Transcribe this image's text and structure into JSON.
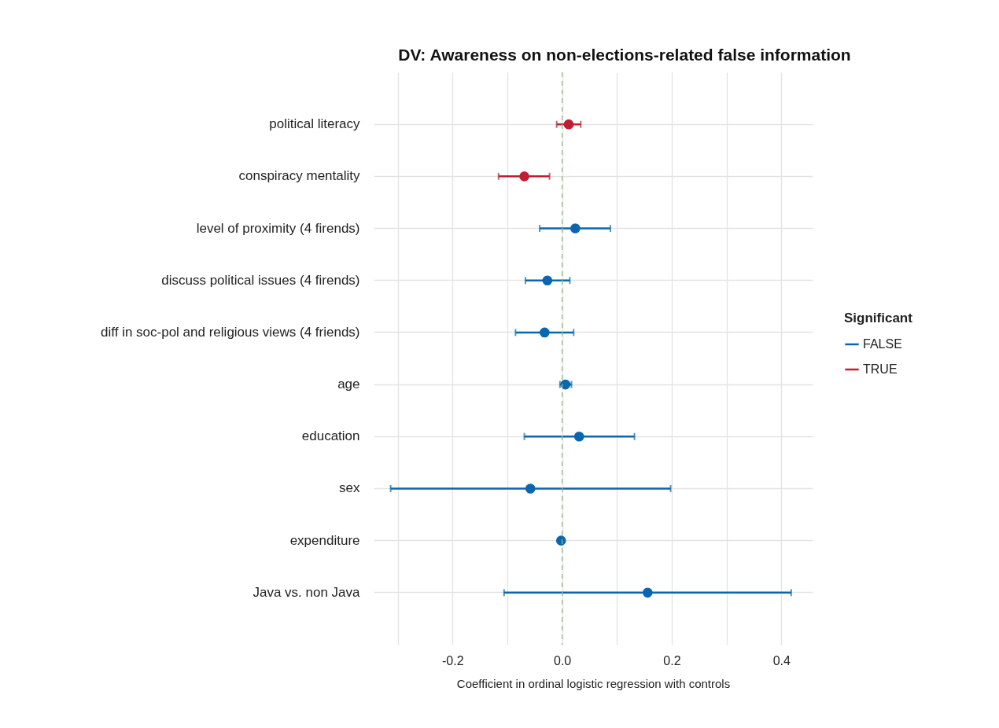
{
  "chart_data": {
    "type": "scatter",
    "orientation": "horizontal",
    "title": "DV: Awareness on non-elections-related false information",
    "xlabel": "Coefficient in ordinal logistic regression with controls",
    "categories": [
      "political literacy",
      "conspiracy mentality",
      "level of proximity (4 firends)",
      "discuss political issues (4 firends)",
      "diff in soc-pol and religious views (4 friends)",
      "age",
      "education",
      "sex",
      "expenditure",
      "Java vs. non Java"
    ],
    "series": [
      {
        "name": "FALSE",
        "color": "#0a66b0",
        "values": [
          null,
          null,
          0.024,
          -0.027,
          -0.032,
          0.006,
          0.031,
          -0.058,
          -0.002,
          0.156
        ],
        "errors": [
          null,
          null,
          [
            -0.041,
            0.088
          ],
          [
            -0.067,
            0.014
          ],
          [
            -0.085,
            0.021
          ],
          [
            -0.004,
            0.017
          ],
          [
            -0.069,
            0.132
          ],
          [
            -0.313,
            0.198
          ],
          null,
          [
            -0.106,
            0.418
          ]
        ]
      },
      {
        "name": "TRUE",
        "color": "#c01f33",
        "values": [
          0.012,
          -0.069,
          null,
          null,
          null,
          null,
          null,
          null,
          null,
          null
        ],
        "errors": [
          [
            -0.01,
            0.034
          ],
          [
            -0.116,
            -0.023
          ],
          null,
          null,
          null,
          null,
          null,
          null,
          null,
          null
        ]
      }
    ],
    "xlim": [
      -0.344,
      0.457
    ],
    "xticks": [
      {
        "value": -0.3,
        "label": null
      },
      -0.2,
      {
        "value": -0.1,
        "label": null
      },
      {
        "value": 0,
        "label": "0.0"
      },
      {
        "value": 0.1,
        "label": null
      },
      0.2,
      {
        "value": 0.3,
        "label": null
      },
      0.4
    ],
    "ref_lines": [
      {
        "axis": "x",
        "value": 0,
        "color": "#8cc47e",
        "line_style": "dashed"
      }
    ],
    "grid": true,
    "legend": "right",
    "legend_title": "Significant",
    "marker": "circle"
  }
}
